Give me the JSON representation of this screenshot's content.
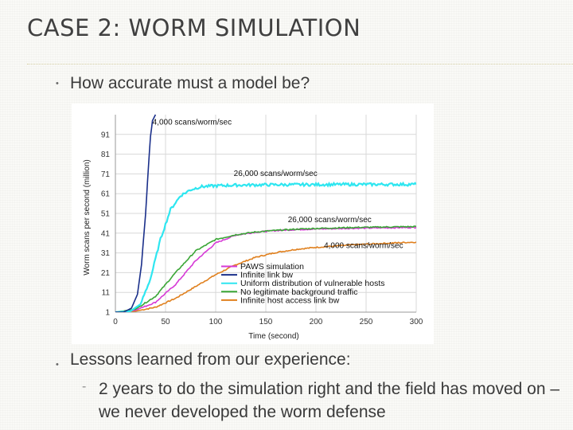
{
  "slide": {
    "title": "CASE 2: WORM SIMULATION",
    "bullets": [
      {
        "marker": "•",
        "text": "How accurate must a model be?"
      },
      {
        "marker": "•",
        "text": "Lessons learned from our experience:"
      }
    ],
    "sub_bullets": [
      {
        "marker": "-",
        "text": "2 years to do the simulation right and the field has moved on – we never developed the worm defense"
      }
    ]
  },
  "chart_data": {
    "type": "line",
    "title": "",
    "xlabel": "Time (second)",
    "ylabel": "Worm scans per second (million)",
    "xlim": [
      0,
      300
    ],
    "ylim": [
      1,
      101
    ],
    "xticks": [
      0,
      50,
      100,
      150,
      200,
      250,
      300
    ],
    "yticks": [
      1,
      11,
      21,
      31,
      41,
      51,
      61,
      71,
      81,
      91
    ],
    "grid": true,
    "legend_position": "bottom-right",
    "series": [
      {
        "name": "PAWS simulation",
        "color": "#d63ad6",
        "x": [
          0,
          20,
          40,
          60,
          80,
          100,
          120,
          140,
          160,
          180,
          200,
          240,
          280,
          300
        ],
        "y": [
          1,
          2,
          6,
          15,
          27,
          36,
          40,
          41.5,
          42.3,
          42.8,
          43.1,
          43.5,
          43.8,
          43.9
        ]
      },
      {
        "name": "Infinite link bw",
        "color": "#1a2f8a",
        "x": [
          0,
          8,
          16,
          22,
          26,
          30,
          33,
          35,
          37,
          40
        ],
        "y": [
          1,
          1,
          3,
          10,
          25,
          50,
          75,
          90,
          98,
          101
        ]
      },
      {
        "name": "Uniform distribution of vulnerable hosts",
        "color": "#2ee6f0",
        "x": [
          0,
          15,
          25,
          35,
          45,
          55,
          65,
          75,
          85,
          100,
          120,
          150,
          200,
          250,
          300
        ],
        "y": [
          1,
          1.5,
          5,
          18,
          38,
          53,
          60,
          63,
          64.5,
          65,
          65.3,
          65.5,
          65.6,
          65.7,
          65.7
        ]
      },
      {
        "name": "No legitimate background traffic",
        "color": "#3aa636",
        "x": [
          0,
          20,
          40,
          60,
          80,
          100,
          120,
          140,
          160,
          180,
          200,
          240,
          280,
          300
        ],
        "y": [
          1,
          2.5,
          9,
          21,
          32,
          37.8,
          40.2,
          41.6,
          42.4,
          43,
          43.4,
          43.9,
          44.2,
          44.3
        ]
      },
      {
        "name": "Infinite host access link bw",
        "color": "#e0801e",
        "x": [
          0,
          20,
          40,
          60,
          80,
          100,
          120,
          140,
          160,
          180,
          200,
          240,
          280,
          300
        ],
        "y": [
          1,
          1.5,
          3.5,
          8,
          14,
          20,
          25,
          28.8,
          31.2,
          32.8,
          33.8,
          35.2,
          36.1,
          36.5
        ]
      }
    ],
    "annotations": [
      {
        "text": "4,000 scans/worm/sec",
        "x": 37,
        "y": 96
      },
      {
        "text": "26,000 scans/worm/sec",
        "x": 118,
        "y": 70
      },
      {
        "text": "26,000 scans/worm/sec",
        "x": 172,
        "y": 46.5
      },
      {
        "text": "4,000 scans/worm/sec",
        "x": 208,
        "y": 33.5
      }
    ]
  }
}
